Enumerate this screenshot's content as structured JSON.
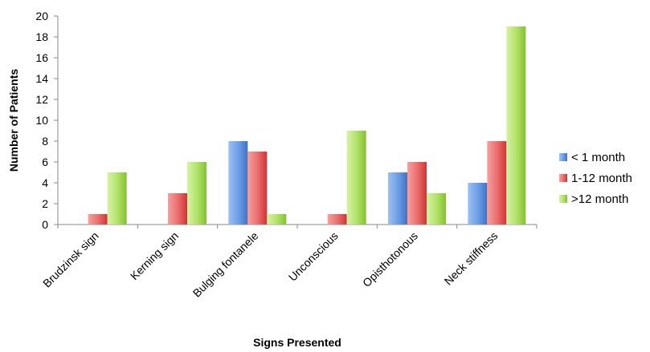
{
  "chart_data": {
    "type": "bar",
    "title": "",
    "xlabel": "Signs Presented",
    "ylabel": "Number of Patients",
    "ylim": [
      0,
      20
    ],
    "yticks": [
      0,
      2,
      4,
      6,
      8,
      10,
      12,
      14,
      16,
      18,
      20
    ],
    "grid": false,
    "legend_position": "right",
    "categories": [
      "Brudzinsk sign",
      "Kerning sign",
      "Bulging fontanele",
      "Unconscious",
      "Opisthotonous",
      "Neck stiffness"
    ],
    "series": [
      {
        "name": "< 1 month",
        "color": "#5b8fdc",
        "values": [
          0,
          0,
          8,
          0,
          5,
          4
        ]
      },
      {
        "name": "1-12 month",
        "color": "#e55050",
        "values": [
          1,
          3,
          7,
          1,
          6,
          8
        ]
      },
      {
        "name": ">12 month",
        "color": "#8fcc3a",
        "values": [
          5,
          6,
          1,
          9,
          3,
          19
        ]
      }
    ]
  }
}
